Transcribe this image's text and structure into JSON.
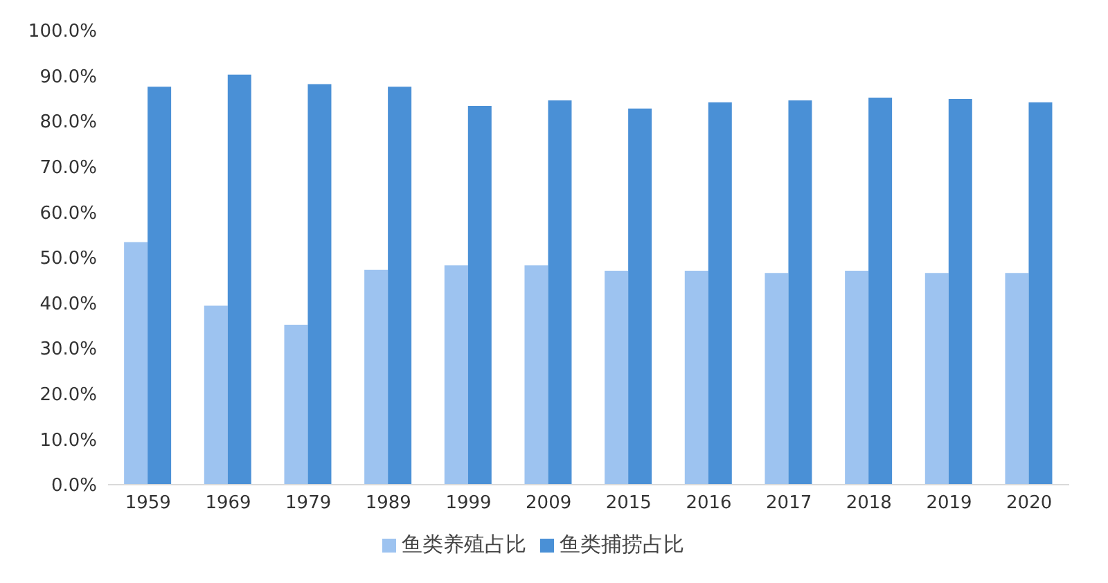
{
  "chart_data": {
    "type": "bar",
    "categories": [
      "1959",
      "1969",
      "1979",
      "1989",
      "1999",
      "2009",
      "2015",
      "2016",
      "2017",
      "2018",
      "2019",
      "2020"
    ],
    "series": [
      {
        "name": "鱼类养殖占比",
        "color": "#9dc3f0",
        "values": [
          53.4,
          39.4,
          35.2,
          47.3,
          48.3,
          48.3,
          47.1,
          47.1,
          46.6,
          47.1,
          46.6,
          46.6
        ]
      },
      {
        "name": "鱼类捕捞占比",
        "color": "#4a90d6",
        "values": [
          87.6,
          90.3,
          88.2,
          87.6,
          83.4,
          84.6,
          82.8,
          84.2,
          84.6,
          85.2,
          84.9,
          84.2
        ]
      }
    ],
    "ylim": [
      0,
      100
    ],
    "yticks": [
      {
        "value": 0,
        "label": "0.0%"
      },
      {
        "value": 10,
        "label": "10.0%"
      },
      {
        "value": 20,
        "label": "20.0%"
      },
      {
        "value": 30,
        "label": "30.0%"
      },
      {
        "value": 40,
        "label": "40.0%"
      },
      {
        "value": 50,
        "label": "50.0%"
      },
      {
        "value": 60,
        "label": "60.0%"
      },
      {
        "value": 70,
        "label": "70.0%"
      },
      {
        "value": 80,
        "label": "80.0%"
      },
      {
        "value": 90,
        "label": "90.0%"
      },
      {
        "value": 100,
        "label": "100.0%"
      }
    ],
    "grid": false,
    "legend": "bottom"
  }
}
